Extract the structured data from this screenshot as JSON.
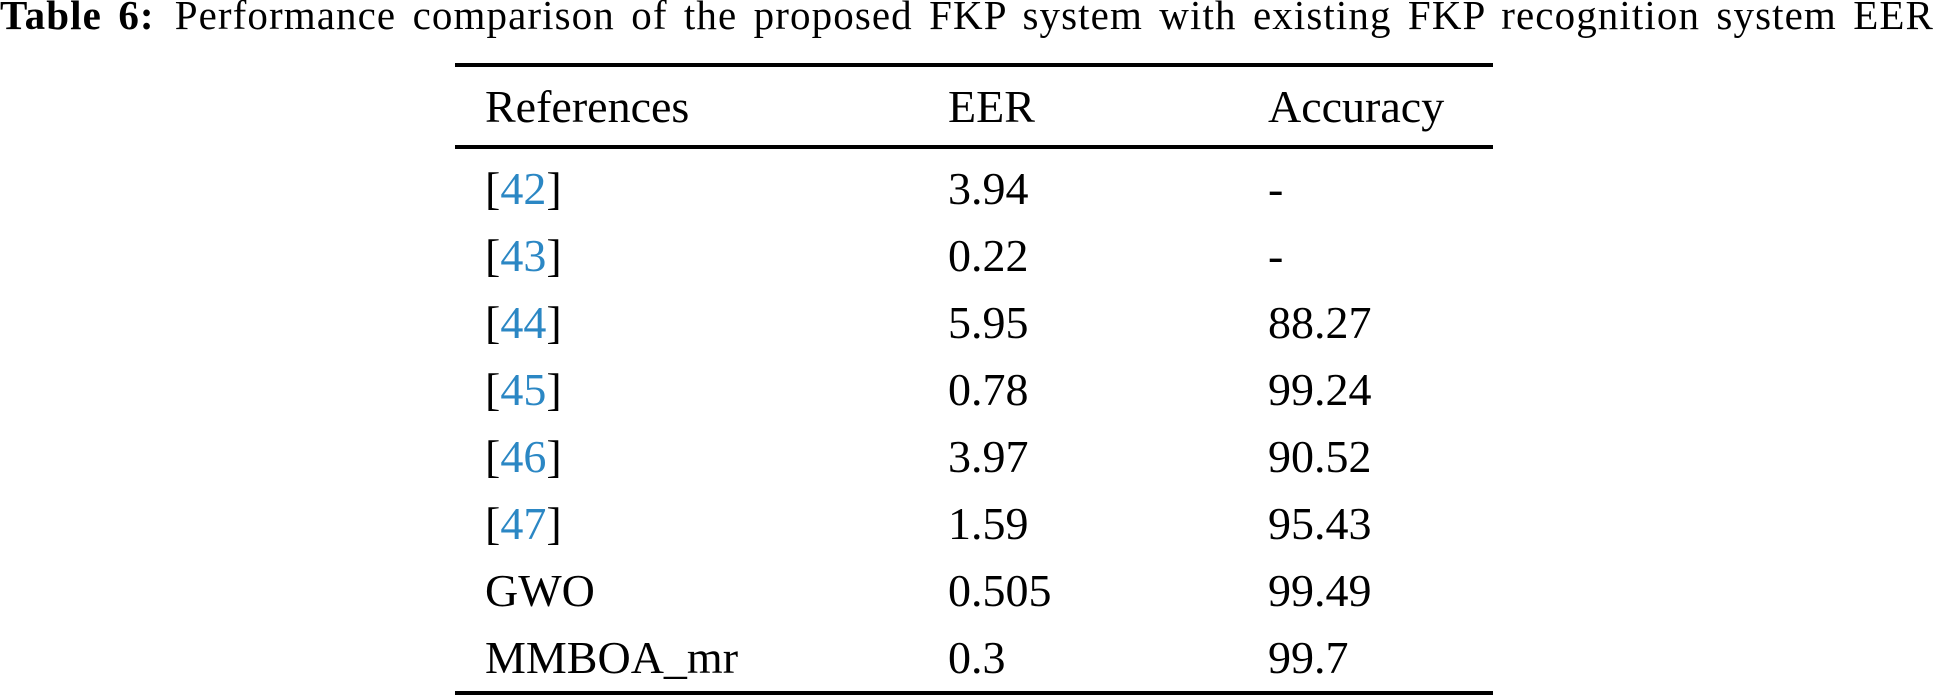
{
  "caption": {
    "label": "Table 6:",
    "text": "Performance comparison of the proposed FKP system with existing FKP recognition system EER"
  },
  "colors": {
    "background": "#ffffff",
    "text": "#000000",
    "rule": "#000000",
    "citation_link": "#2b87c4"
  },
  "table": {
    "headers": [
      {
        "label": "References"
      },
      {
        "label": "EER"
      },
      {
        "label": "Accuracy"
      }
    ],
    "rows": [
      {
        "reference": {
          "type": "citation",
          "number": "42"
        },
        "eer": "3.94",
        "accuracy": "-"
      },
      {
        "reference": {
          "type": "citation",
          "number": "43"
        },
        "eer": "0.22",
        "accuracy": "-"
      },
      {
        "reference": {
          "type": "citation",
          "number": "44"
        },
        "eer": "5.95",
        "accuracy": "88.27"
      },
      {
        "reference": {
          "type": "citation",
          "number": "45"
        },
        "eer": "0.78",
        "accuracy": "99.24"
      },
      {
        "reference": {
          "type": "citation",
          "number": "46"
        },
        "eer": "3.97",
        "accuracy": "90.52"
      },
      {
        "reference": {
          "type": "citation",
          "number": "47"
        },
        "eer": "1.59",
        "accuracy": "95.43"
      },
      {
        "reference": {
          "type": "text",
          "label": "GWO"
        },
        "eer": "0.505",
        "accuracy": "99.49"
      },
      {
        "reference": {
          "type": "text",
          "label": "MMBOA_mr"
        },
        "eer": "0.3",
        "accuracy": "99.7"
      }
    ]
  }
}
